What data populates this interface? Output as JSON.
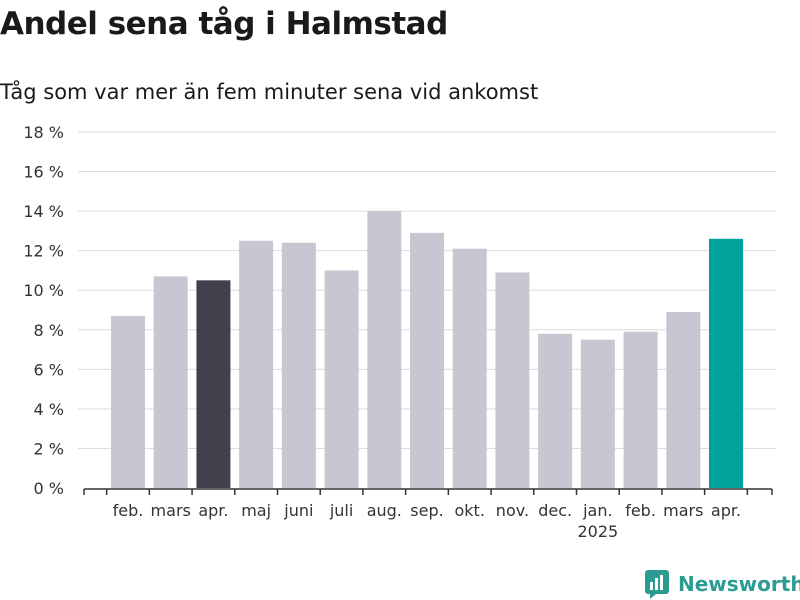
{
  "title": "Andel sena tåg i Halmstad",
  "subtitle": "Tåg som var mer än fem minuter sena vid ankomst",
  "brand": {
    "name": "Newsworthy",
    "icon": "newsworthy-logo-icon",
    "color": "#2a9c92"
  },
  "colors": {
    "bar": "#c8c6d1",
    "previous_year": "#41404d",
    "latest": "#00a39a",
    "grid": "#dcdcdc",
    "axis": "#333333"
  },
  "chart_data": {
    "type": "bar",
    "title": "Andel sena tåg i Halmstad",
    "subtitle": "Tåg som var mer än fem minuter sena vid ankomst",
    "xlabel": "",
    "ylabel": "",
    "categories": [
      "feb.",
      "mars",
      "apr.",
      "maj",
      "juni",
      "juli",
      "aug.",
      "sep.",
      "okt.",
      "nov.",
      "dec.",
      "jan.",
      "feb.",
      "mars",
      "apr."
    ],
    "year_label": {
      "text": "2025",
      "under_category_index": 11
    },
    "values": [
      8.7,
      10.7,
      10.5,
      12.5,
      12.4,
      11.0,
      14.0,
      12.9,
      12.1,
      10.9,
      7.8,
      7.5,
      7.9,
      8.9,
      12.6
    ],
    "highlight": {
      "previous_year_index": 2,
      "latest_index": 14
    },
    "ylim": [
      0,
      18
    ],
    "yticks": [
      0,
      2,
      4,
      6,
      8,
      10,
      12,
      14,
      16,
      18
    ],
    "ytick_labels": [
      "0 %",
      "2 %",
      "4 %",
      "6 %",
      "8 %",
      "10 %",
      "12 %",
      "14 %",
      "16 %",
      "18 %"
    ],
    "grid": true,
    "legend": "none"
  }
}
